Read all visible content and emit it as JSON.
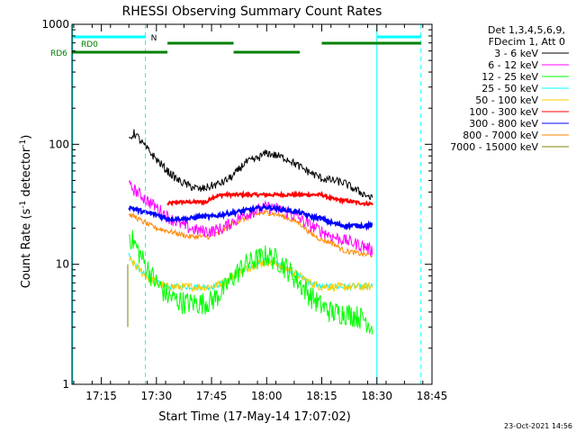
{
  "chart_data": {
    "type": "line",
    "title": "RHESSI Observing Summary Count Rates",
    "xlabel": "Start Time (17-May-14 17:07:02)",
    "ylabel_main": "Count Rate (s",
    "ylabel_sup1": "-1",
    "ylabel_mid": " detector",
    "ylabel_sup2": "-1",
    "ylabel_end": ")",
    "y_scale": "log",
    "ylim": [
      1,
      1000
    ],
    "xlim_minutes": [
      17.117,
      18.75
    ],
    "x_ticks": [
      {
        "label": "17:15",
        "hour": 17.25
      },
      {
        "label": "17:30",
        "hour": 17.5
      },
      {
        "label": "17:45",
        "hour": 17.75
      },
      {
        "label": "18:00",
        "hour": 18.0
      },
      {
        "label": "18:15",
        "hour": 18.25
      },
      {
        "label": "18:30",
        "hour": 18.5
      },
      {
        "label": "18:45",
        "hour": 18.75
      }
    ],
    "y_ticks": [
      {
        "label": "1",
        "value": 1
      },
      {
        "label": "10",
        "value": 10
      },
      {
        "label": "100",
        "value": 100
      },
      {
        "label": "1000",
        "value": 1000
      }
    ],
    "legend_header": [
      "Det 1,3,4,5,6,9,",
      "FDecim 1, Att 0"
    ],
    "series": [
      {
        "name": "3 - 6 keV",
        "color": "#000000",
        "points": [
          [
            17.375,
            110
          ],
          [
            17.4,
            125
          ],
          [
            17.45,
            95
          ],
          [
            17.5,
            75
          ],
          [
            17.55,
            60
          ],
          [
            17.6,
            50
          ],
          [
            17.65,
            45
          ],
          [
            17.7,
            42
          ],
          [
            17.75,
            45
          ],
          [
            17.8,
            48
          ],
          [
            17.85,
            55
          ],
          [
            17.9,
            70
          ],
          [
            17.95,
            75
          ],
          [
            18.0,
            85
          ],
          [
            18.05,
            80
          ],
          [
            18.1,
            75
          ],
          [
            18.15,
            65
          ],
          [
            18.2,
            58
          ],
          [
            18.25,
            52
          ],
          [
            18.3,
            50
          ],
          [
            18.35,
            48
          ],
          [
            18.4,
            42
          ],
          [
            18.45,
            38
          ],
          [
            18.48,
            35
          ]
        ]
      },
      {
        "name": "6 - 12 keV",
        "color": "#ff00ff",
        "points": [
          [
            17.375,
            45
          ],
          [
            17.4,
            42
          ],
          [
            17.45,
            35
          ],
          [
            17.5,
            30
          ],
          [
            17.55,
            25
          ],
          [
            17.6,
            22
          ],
          [
            17.65,
            20
          ],
          [
            17.7,
            19
          ],
          [
            17.75,
            19
          ],
          [
            17.8,
            20
          ],
          [
            17.85,
            23
          ],
          [
            17.9,
            26
          ],
          [
            17.95,
            28
          ],
          [
            18.0,
            30
          ],
          [
            18.05,
            29
          ],
          [
            18.1,
            27
          ],
          [
            18.15,
            24
          ],
          [
            18.2,
            21
          ],
          [
            18.25,
            19
          ],
          [
            18.3,
            17
          ],
          [
            18.35,
            16
          ],
          [
            18.4,
            15
          ],
          [
            18.45,
            14
          ],
          [
            18.48,
            13
          ]
        ]
      },
      {
        "name": "12 - 25 keV",
        "color": "#00ff00",
        "points": [
          [
            17.375,
            18
          ],
          [
            17.4,
            15
          ],
          [
            17.45,
            10
          ],
          [
            17.5,
            7
          ],
          [
            17.55,
            5.5
          ],
          [
            17.6,
            5
          ],
          [
            17.65,
            4.8
          ],
          [
            17.7,
            4.8
          ],
          [
            17.75,
            5
          ],
          [
            17.8,
            6
          ],
          [
            17.85,
            8
          ],
          [
            17.9,
            10
          ],
          [
            17.95,
            11
          ],
          [
            18.0,
            12
          ],
          [
            18.05,
            11
          ],
          [
            18.1,
            9
          ],
          [
            18.15,
            7
          ],
          [
            18.2,
            5.5
          ],
          [
            18.25,
            4.5
          ],
          [
            18.3,
            4
          ],
          [
            18.35,
            4
          ],
          [
            18.4,
            3.8
          ],
          [
            18.45,
            3.5
          ],
          [
            18.48,
            3
          ]
        ]
      },
      {
        "name": "25 - 50 keV",
        "color": "#00ffff",
        "points": [
          [
            17.375,
            12
          ],
          [
            17.4,
            10
          ],
          [
            17.45,
            8
          ],
          [
            17.5,
            7
          ],
          [
            17.55,
            6.5
          ],
          [
            17.6,
            6.5
          ],
          [
            17.65,
            6.5
          ],
          [
            17.7,
            6.5
          ],
          [
            17.75,
            6.5
          ],
          [
            17.8,
            7
          ],
          [
            17.85,
            8
          ],
          [
            17.9,
            9
          ],
          [
            17.95,
            10
          ],
          [
            18.0,
            11
          ],
          [
            18.05,
            10
          ],
          [
            18.1,
            9
          ],
          [
            18.15,
            8
          ],
          [
            18.2,
            7
          ],
          [
            18.25,
            6.5
          ],
          [
            18.3,
            6.5
          ],
          [
            18.35,
            6.5
          ],
          [
            18.4,
            6.5
          ],
          [
            18.45,
            6.5
          ],
          [
            18.48,
            6.5
          ]
        ]
      },
      {
        "name": "50 - 100 keV",
        "color": "#ffcc00",
        "points": [
          [
            17.375,
            11
          ],
          [
            17.4,
            10
          ],
          [
            17.45,
            8
          ],
          [
            17.5,
            7
          ],
          [
            17.55,
            6.5
          ],
          [
            17.6,
            6.5
          ],
          [
            17.65,
            6.5
          ],
          [
            17.7,
            6.5
          ],
          [
            17.75,
            6.5
          ],
          [
            17.8,
            7
          ],
          [
            17.85,
            8
          ],
          [
            17.9,
            9
          ],
          [
            17.95,
            10
          ],
          [
            18.0,
            10.5
          ],
          [
            18.05,
            10
          ],
          [
            18.1,
            9
          ],
          [
            18.15,
            8
          ],
          [
            18.2,
            7
          ],
          [
            18.25,
            6.5
          ],
          [
            18.3,
            6.5
          ],
          [
            18.35,
            6.5
          ],
          [
            18.4,
            6.5
          ],
          [
            18.45,
            6.5
          ],
          [
            18.48,
            6.5
          ]
        ]
      },
      {
        "name": "100 - 300 keV",
        "color": "#ff0000",
        "points": [
          [
            17.55,
            32
          ],
          [
            17.6,
            33
          ],
          [
            17.65,
            33
          ],
          [
            17.7,
            33
          ],
          [
            17.73,
            33
          ],
          [
            17.75,
            36
          ],
          [
            17.8,
            38
          ],
          [
            18.25,
            38
          ],
          [
            18.3,
            35
          ],
          [
            18.35,
            34
          ],
          [
            18.4,
            33
          ],
          [
            18.45,
            32
          ],
          [
            18.48,
            32
          ]
        ]
      },
      {
        "name": "300 - 800 keV",
        "color": "#0000ff",
        "points": [
          [
            17.375,
            30
          ],
          [
            17.4,
            29
          ],
          [
            17.45,
            27
          ],
          [
            17.5,
            26
          ],
          [
            17.55,
            24
          ],
          [
            17.6,
            24
          ],
          [
            17.65,
            24
          ],
          [
            17.7,
            25
          ],
          [
            17.75,
            25
          ],
          [
            17.8,
            26
          ],
          [
            17.85,
            27
          ],
          [
            17.9,
            28
          ],
          [
            17.95,
            29
          ],
          [
            18.0,
            30
          ],
          [
            18.05,
            29
          ],
          [
            18.1,
            28
          ],
          [
            18.15,
            27
          ],
          [
            18.2,
            25
          ],
          [
            18.25,
            24
          ],
          [
            18.3,
            22
          ],
          [
            18.35,
            21
          ],
          [
            18.4,
            21
          ],
          [
            18.45,
            21
          ],
          [
            18.48,
            21
          ]
        ]
      },
      {
        "name": "800 - 7000 keV",
        "color": "#ff8800",
        "points": [
          [
            17.375,
            26
          ],
          [
            17.4,
            25
          ],
          [
            17.45,
            22
          ],
          [
            17.5,
            20
          ],
          [
            17.55,
            19
          ],
          [
            17.6,
            18
          ],
          [
            17.65,
            17
          ],
          [
            17.7,
            17
          ],
          [
            17.75,
            17
          ],
          [
            17.8,
            19
          ],
          [
            17.85,
            22
          ],
          [
            17.9,
            24
          ],
          [
            17.95,
            26
          ],
          [
            18.0,
            27
          ],
          [
            18.05,
            26
          ],
          [
            18.1,
            24
          ],
          [
            18.15,
            22
          ],
          [
            18.2,
            18
          ],
          [
            18.25,
            16
          ],
          [
            18.3,
            15
          ],
          [
            18.35,
            13
          ],
          [
            18.4,
            12.5
          ],
          [
            18.45,
            12
          ],
          [
            18.48,
            12
          ]
        ]
      },
      {
        "name": "7000 - 15000 keV",
        "color": "#808000",
        "points": [
          [
            17.37,
            3
          ],
          [
            17.37,
            10
          ]
        ]
      }
    ],
    "attenuator_bars": {
      "N_label": "N",
      "RD0_label": "RD0",
      "RD6_label": "RD6",
      "N_color": "#00ffff",
      "RD_color": "#008000",
      "N_segments": [
        [
          17.0,
          17.45
        ],
        [
          18.5,
          18.7
        ]
      ],
      "RD0_segments": [
        [
          17.55,
          17.85
        ],
        [
          18.25,
          18.7
        ]
      ],
      "RD6_segments": [
        [
          17.0,
          17.55
        ],
        [
          17.85,
          18.15
        ]
      ]
    },
    "vertical_lines": [
      {
        "hour": 17.12,
        "style": "solid"
      },
      {
        "hour": 17.45,
        "style": "dashed"
      },
      {
        "hour": 18.5,
        "style": "solid"
      },
      {
        "hour": 18.7,
        "style": "dashed"
      }
    ],
    "timestamp": "23-Oct-2021 14:56"
  }
}
